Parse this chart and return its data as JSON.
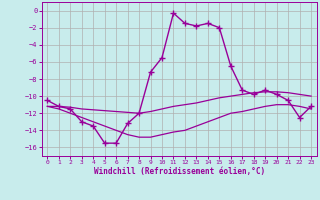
{
  "xlabel": "Windchill (Refroidissement éolien,°C)",
  "background_color": "#c8ecec",
  "grid_color": "#b0b0b0",
  "line_color": "#990099",
  "x_values": [
    0,
    1,
    2,
    3,
    4,
    5,
    6,
    7,
    8,
    9,
    10,
    11,
    12,
    13,
    14,
    15,
    16,
    17,
    18,
    19,
    20,
    21,
    22,
    23
  ],
  "main_line": [
    -10.5,
    -11.2,
    -11.5,
    -13.0,
    -13.5,
    -15.5,
    -15.5,
    -13.2,
    -12.0,
    -7.2,
    -5.5,
    -0.3,
    -1.5,
    -1.8,
    -1.5,
    -2.0,
    -6.5,
    -9.3,
    -9.8,
    -9.3,
    -9.8,
    -10.5,
    -12.5,
    -11.2
  ],
  "upper_band": [
    -11.2,
    -11.2,
    -11.3,
    -11.5,
    -11.6,
    -11.7,
    -11.8,
    -11.9,
    -12.0,
    -11.8,
    -11.5,
    -11.2,
    -11.0,
    -10.8,
    -10.5,
    -10.2,
    -10.0,
    -9.8,
    -9.6,
    -9.5,
    -9.5,
    -9.6,
    -9.8,
    -10.0
  ],
  "lower_band": [
    -11.2,
    -11.5,
    -12.0,
    -12.5,
    -13.0,
    -13.5,
    -14.0,
    -14.5,
    -14.8,
    -14.8,
    -14.5,
    -14.2,
    -14.0,
    -13.5,
    -13.0,
    -12.5,
    -12.0,
    -11.8,
    -11.5,
    -11.2,
    -11.0,
    -11.0,
    -11.2,
    -11.5
  ],
  "ylim": [
    -17,
    1
  ],
  "xlim": [
    -0.5,
    23.5
  ],
  "yticks": [
    0,
    -2,
    -4,
    -6,
    -8,
    -10,
    -12,
    -14,
    -16
  ],
  "xticks": [
    0,
    1,
    2,
    3,
    4,
    5,
    6,
    7,
    8,
    9,
    10,
    11,
    12,
    13,
    14,
    15,
    16,
    17,
    18,
    19,
    20,
    21,
    22,
    23
  ]
}
